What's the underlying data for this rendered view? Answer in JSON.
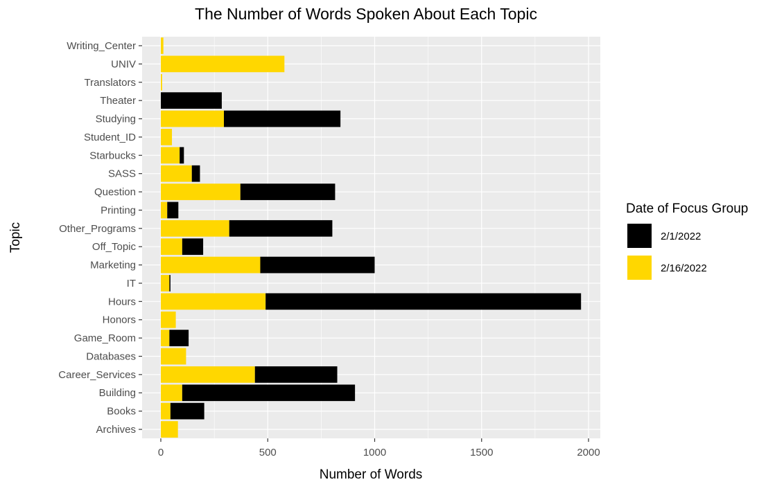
{
  "chart_data": {
    "type": "bar",
    "orientation": "horizontal",
    "stacked": true,
    "title": "The Number of Words Spoken About Each Topic",
    "xlabel": "Number of Words",
    "ylabel": "Topic",
    "xlim": [
      0,
      2000
    ],
    "x_ticks": [
      0,
      500,
      1000,
      1500,
      2000
    ],
    "x_tick_labels": [
      "0",
      "500",
      "1000",
      "1500",
      "2000"
    ],
    "grid": true,
    "legend_position": "right",
    "legend_title": "Date of Focus Group",
    "categories": [
      "Writing_Center",
      "UNIV",
      "Translators",
      "Theater",
      "Studying",
      "Student_ID",
      "Starbucks",
      "SASS",
      "Question",
      "Printing",
      "Other_Programs",
      "Off_Topic",
      "Marketing",
      "IT",
      "Hours",
      "Honors",
      "Game_Room",
      "Databases",
      "Career_Services",
      "Building",
      "Books",
      "Archives"
    ],
    "series": [
      {
        "name": "2/16/2022",
        "color": "#FFD700",
        "values": [
          12,
          578,
          6,
          0,
          295,
          52,
          88,
          145,
          372,
          30,
          320,
          100,
          465,
          40,
          490,
          70,
          40,
          118,
          440,
          100,
          45,
          80
        ]
      },
      {
        "name": "2/1/2022",
        "color": "#000000",
        "values": [
          0,
          0,
          0,
          285,
          545,
          0,
          20,
          38,
          443,
          52,
          482,
          98,
          535,
          5,
          1475,
          0,
          90,
          0,
          385,
          808,
          158,
          0
        ]
      }
    ],
    "legend_entries": [
      {
        "label": "2/1/2022",
        "color": "#000000"
      },
      {
        "label": "2/16/2022",
        "color": "#FFD700"
      }
    ],
    "panel_background": "#EBEBEB",
    "grid_color": "#FFFFFF"
  }
}
